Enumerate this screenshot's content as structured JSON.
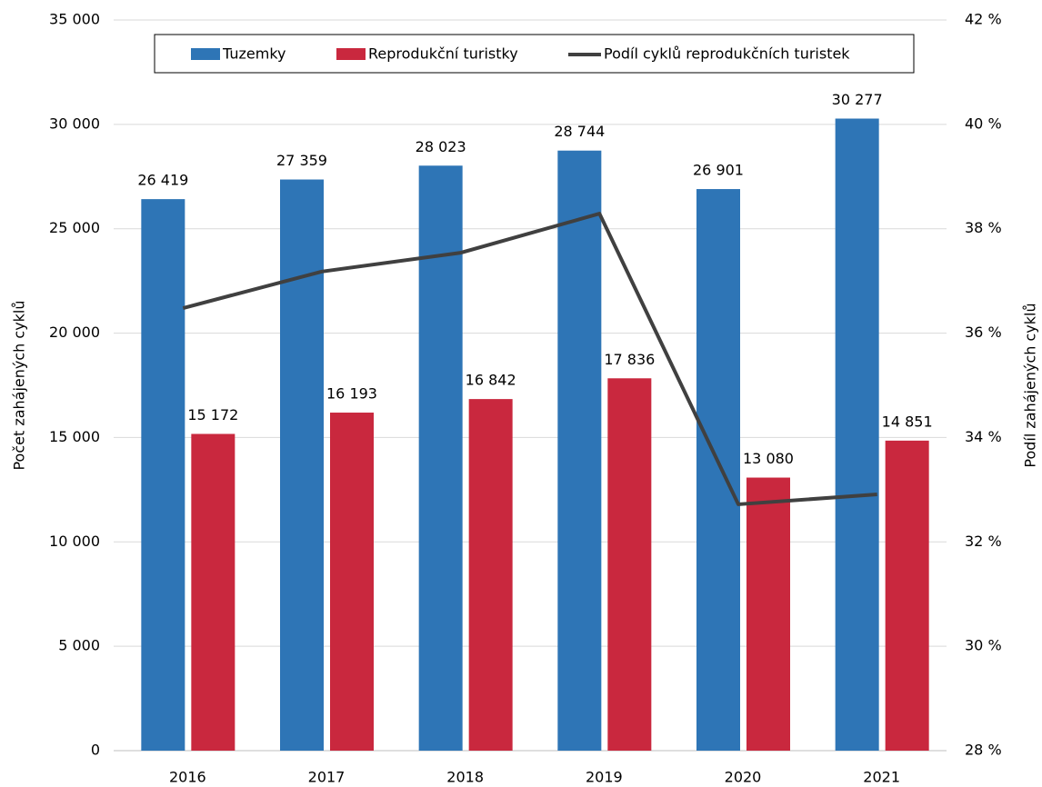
{
  "chart_data": {
    "type": "bar",
    "ylabel": "Počet zahájených cyklů",
    "y2label": "Podíl zahájených cyklů",
    "categories": [
      "2016",
      "2017",
      "2018",
      "2019",
      "2020",
      "2021"
    ],
    "series": [
      {
        "name": "Tuzemky",
        "type": "bar",
        "color": "#2e75b6",
        "values": [
          26419,
          27359,
          28023,
          28744,
          26901,
          30277
        ],
        "value_labels": [
          "26 419",
          "27 359",
          "28 023",
          "28 744",
          "26 901",
          "30 277"
        ]
      },
      {
        "name": "Reprodukční turistky",
        "type": "bar",
        "color": "#c9283e",
        "values": [
          15172,
          16193,
          16842,
          17836,
          13080,
          14851
        ],
        "value_labels": [
          "15 172",
          "16 193",
          "16 842",
          "17 836",
          "13 080",
          "14 851"
        ]
      },
      {
        "name": "Podíl cyklů reprodukčních turistek",
        "type": "line",
        "color": "#404040",
        "axis": "y2",
        "values": [
          36.48,
          37.18,
          37.54,
          38.29,
          32.72,
          32.91
        ]
      }
    ],
    "ylim": [
      0,
      35000
    ],
    "yticks": [
      0,
      {
        "value": 5000,
        "label": "5 000"
      },
      {
        "value": 10000,
        "label": "10 000"
      },
      {
        "value": 15000,
        "label": "15 000"
      },
      {
        "value": 20000,
        "label": "20 000"
      },
      {
        "value": 25000,
        "label": "25 000"
      },
      {
        "value": 30000,
        "label": "30 000"
      },
      {
        "value": 35000,
        "label": "35 000"
      }
    ],
    "y2lim": [
      28,
      42
    ],
    "y2ticks": [
      {
        "value": 28,
        "label": "28 %"
      },
      {
        "value": 30,
        "label": "30 %"
      },
      {
        "value": 32,
        "label": "32 %"
      },
      {
        "value": 34,
        "label": "34 %"
      },
      {
        "value": 36,
        "label": "36 %"
      },
      {
        "value": 38,
        "label": "38 %"
      },
      {
        "value": 40,
        "label": "40 %"
      },
      {
        "value": 42,
        "label": "42 %"
      }
    ],
    "grid": true
  }
}
